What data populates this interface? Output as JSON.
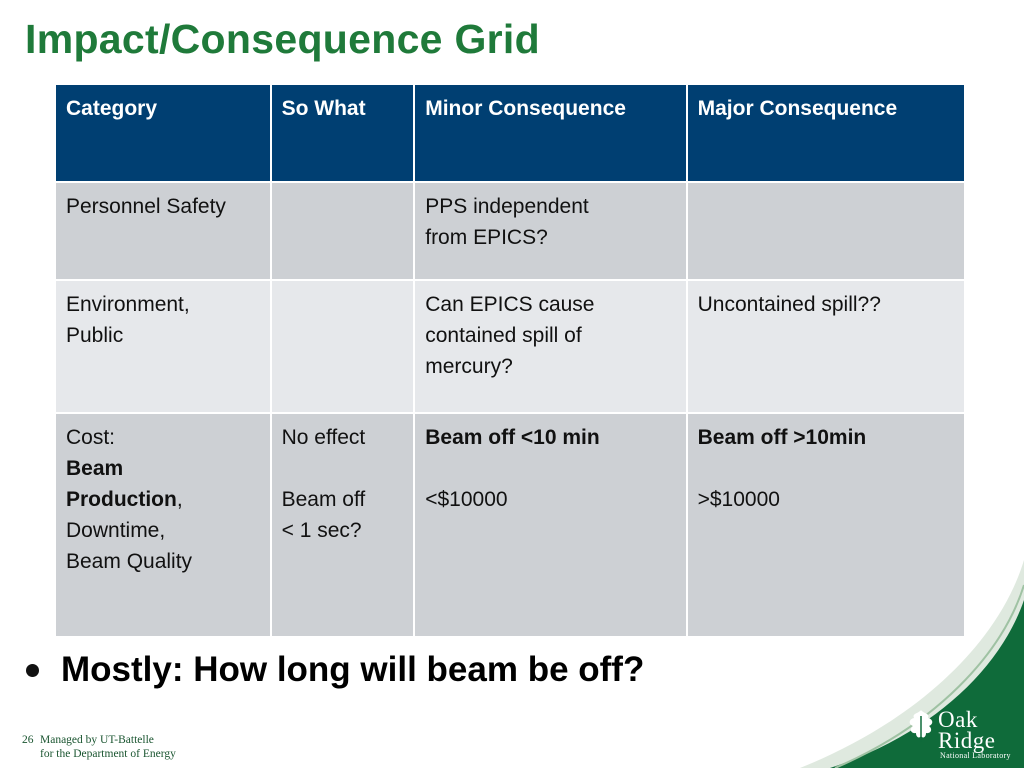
{
  "slide": {
    "title": "Impact/Consequence Grid",
    "table": {
      "headers": [
        "Category",
        "So What",
        "Minor Consequence",
        "Major Consequence"
      ],
      "rows": [
        {
          "category": "Personnel Safety",
          "so_what": "",
          "minor": [
            "PPS independent",
            "from EPICS?"
          ],
          "major": ""
        },
        {
          "category": [
            "Environment,",
            "Public"
          ],
          "so_what": "",
          "minor": [
            "Can EPICS cause",
            "contained spill of",
            "mercury?"
          ],
          "major": "Uncontained spill??"
        },
        {
          "category": {
            "prefix": "Cost:",
            "bold1": "Beam",
            "bold2": "Production",
            "after_bold": ",",
            "line4": "Downtime,",
            "line5": "Beam Quality"
          },
          "so_what": {
            "line1": "No effect",
            "line2": "Beam off",
            "line3": "< 1 sec?"
          },
          "minor": {
            "bold": "Beam off <10 min",
            "value": "<$10000"
          },
          "major": {
            "bold": "Beam off >10min",
            "value": ">$10000"
          }
        }
      ]
    },
    "bullet": "Mostly: How long will beam be off?",
    "footer": {
      "page_number": "26",
      "line1": "Managed by UT-Battelle",
      "line2": "for the Department of Energy"
    },
    "logo": {
      "line1": "Oak",
      "line2": "Ridge",
      "sub": "National Laboratory"
    },
    "colors": {
      "title_green": "#1f7a3a",
      "header_blue": "#003f72",
      "row_gray": "#cdd0d4",
      "row_light": "#e6e8eb",
      "swoosh_green": "#0f6b3a"
    }
  }
}
